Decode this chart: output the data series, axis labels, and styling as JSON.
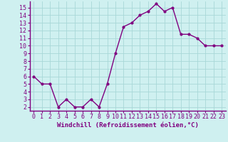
{
  "x": [
    0,
    1,
    2,
    3,
    4,
    5,
    6,
    7,
    8,
    9,
    10,
    11,
    12,
    13,
    14,
    15,
    16,
    17,
    18,
    19,
    20,
    21,
    22,
    23
  ],
  "y": [
    6,
    5,
    5,
    2,
    3,
    2,
    2,
    3,
    2,
    5,
    9,
    12.5,
    13,
    14,
    14.5,
    15.5,
    14.5,
    15,
    11.5,
    11.5,
    11,
    10,
    10,
    10
  ],
  "line_color": "#800080",
  "marker": "o",
  "marker_size": 2.0,
  "bg_color": "#cff0f0",
  "grid_color": "#a8d8d8",
  "xlabel": "Windchill (Refroidissement éolien,°C)",
  "xlim": [
    -0.5,
    23.5
  ],
  "ylim": [
    1.5,
    15.8
  ],
  "yticks": [
    2,
    3,
    4,
    5,
    6,
    7,
    8,
    9,
    10,
    11,
    12,
    13,
    14,
    15
  ],
  "xticks": [
    0,
    1,
    2,
    3,
    4,
    5,
    6,
    7,
    8,
    9,
    10,
    11,
    12,
    13,
    14,
    15,
    16,
    17,
    18,
    19,
    20,
    21,
    22,
    23
  ],
  "tick_color": "#800080",
  "axis_color": "#800080",
  "xlabel_fontsize": 6.5,
  "tick_fontsize": 6.0,
  "linewidth": 1.0,
  "spine_bottom_color": "#800080",
  "spine_left_color": "#800080"
}
